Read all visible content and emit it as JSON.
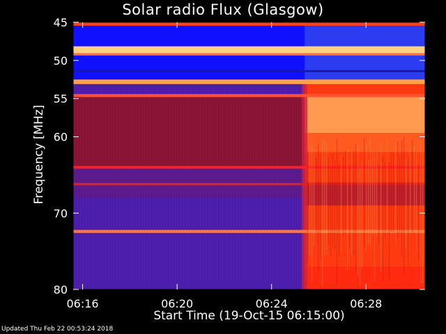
{
  "chart_data": {
    "type": "heatmap",
    "title": "Solar radio Flux (Glasgow)",
    "xlabel": "Start Time (19-Oct-15 06:15:00)",
    "ylabel": "Frequency [MHz]",
    "x_unit": "minutes after 06:15:00",
    "xlim": [
      0.6,
      15.5
    ],
    "ylim": [
      45,
      80
    ],
    "y_reversed": true,
    "xticks": [
      {
        "value": 1,
        "label": "06:16"
      },
      {
        "value": 5,
        "label": "06:20"
      },
      {
        "value": 9,
        "label": "06:24"
      },
      {
        "value": 13,
        "label": "06:28"
      }
    ],
    "yticks": [
      45,
      50,
      55,
      60,
      70,
      80
    ],
    "burst_start_minute": 10.4,
    "colors": {
      "background_low": "#4a1ea8",
      "blue_band": "#1010ff",
      "mid": "#b01818",
      "high": "#ff3a10",
      "peak": "#ffd080"
    }
  },
  "footer": {
    "updated": "Updated Thu Feb 22 00:53:24 2018"
  }
}
